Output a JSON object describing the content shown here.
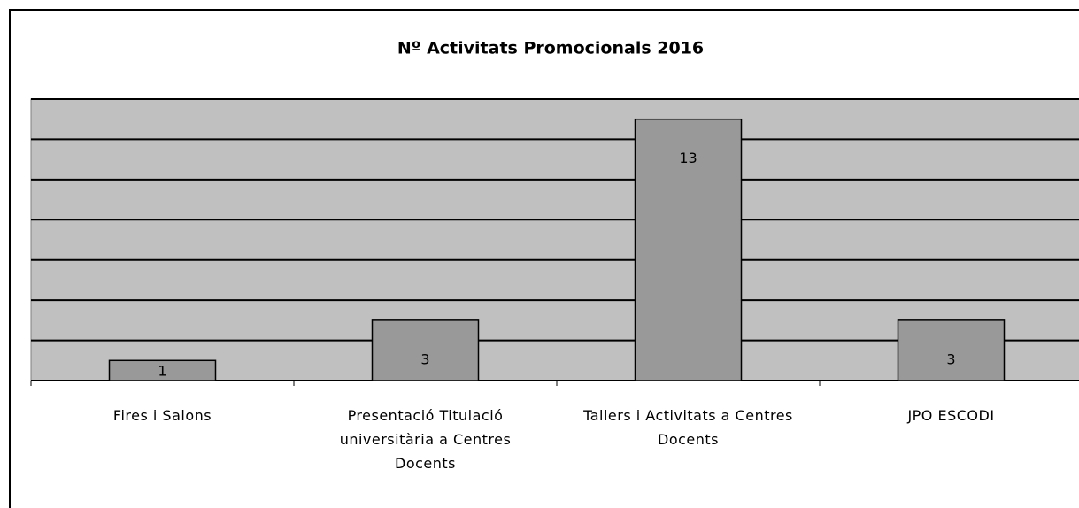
{
  "chart_data": {
    "type": "bar",
    "title": "Nº Activitats Promocionals 2016",
    "categories": [
      "Fires i Salons",
      "Presentació Titulació universitària a Centres Docents",
      "Tallers i Activitats a Centres Docents",
      "JPO ESCODI"
    ],
    "values": [
      1,
      3,
      13,
      3
    ],
    "color": "#999999",
    "ylim": [
      0,
      14
    ],
    "yticks": [
      0,
      2,
      4,
      6,
      8,
      10,
      12,
      14
    ],
    "grid": true
  }
}
